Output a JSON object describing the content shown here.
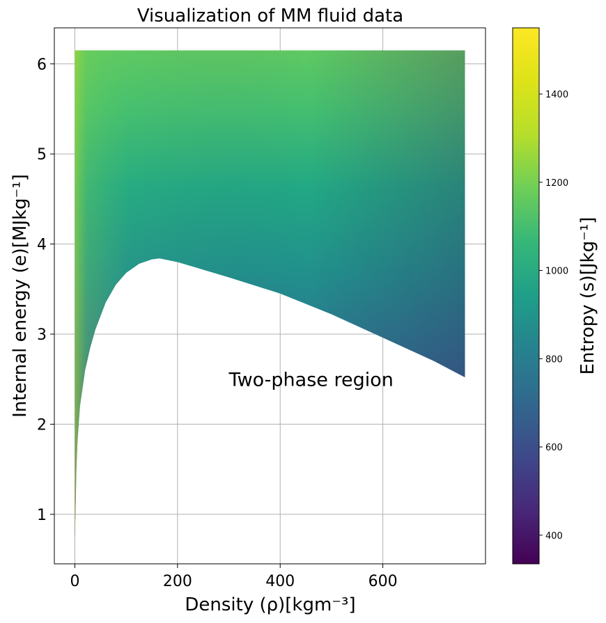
{
  "chart_data": {
    "type": "scatter",
    "title": "Visualization of MM fluid data",
    "xlabel": "Density (ρ)[kgm⁻³]",
    "ylabel": "Internal energy (e)[MJkg⁻¹]",
    "xlim": [
      -40,
      800
    ],
    "ylim": [
      0.45,
      6.4
    ],
    "xticks": [
      0,
      200,
      400,
      600
    ],
    "yticks": [
      1,
      2,
      3,
      4,
      5,
      6
    ],
    "grid": true,
    "annotation": {
      "text": "Two-phase region",
      "x": 300,
      "y": 2.5
    },
    "domain": {
      "x_max": 760,
      "y_max": 6.15,
      "dome_boundary": [
        {
          "x": 0,
          "y": 0.72
        },
        {
          "x": 3,
          "y": 1.5
        },
        {
          "x": 5,
          "y": 1.8
        },
        {
          "x": 10,
          "y": 2.2
        },
        {
          "x": 20,
          "y": 2.6
        },
        {
          "x": 30,
          "y": 2.85
        },
        {
          "x": 40,
          "y": 3.05
        },
        {
          "x": 60,
          "y": 3.35
        },
        {
          "x": 80,
          "y": 3.55
        },
        {
          "x": 100,
          "y": 3.68
        },
        {
          "x": 125,
          "y": 3.78
        },
        {
          "x": 150,
          "y": 3.83
        },
        {
          "x": 165,
          "y": 3.84
        },
        {
          "x": 200,
          "y": 3.8
        },
        {
          "x": 300,
          "y": 3.63
        },
        {
          "x": 400,
          "y": 3.45
        },
        {
          "x": 500,
          "y": 3.22
        },
        {
          "x": 600,
          "y": 2.96
        },
        {
          "x": 700,
          "y": 2.7
        },
        {
          "x": 760,
          "y": 2.52
        }
      ]
    },
    "colorbar": {
      "label": "Entropy (s)[Jkg⁻¹]",
      "colormap": "viridis",
      "vmin": 335,
      "vmax": 1550,
      "ticks": [
        400,
        600,
        800,
        1000,
        1200,
        1400
      ]
    }
  }
}
